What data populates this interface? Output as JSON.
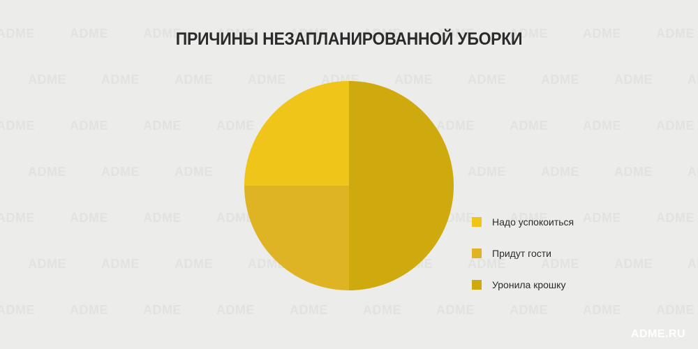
{
  "watermark_text": "ADME",
  "brand": "ADME.RU",
  "chart_data": {
    "type": "pie",
    "title": "ПРИЧИНЫ НЕЗАПЛАНИРОВАННОЙ УБОРКИ",
    "slices": [
      {
        "label": "Надо успокоиться",
        "value": 25,
        "color": "#f0c51a"
      },
      {
        "label": "Придут гости",
        "value": 25,
        "color": "#deb424"
      },
      {
        "label": "Уронила крошку",
        "value": 50,
        "color": "#cfaa0f"
      }
    ],
    "legend_position": "right"
  }
}
